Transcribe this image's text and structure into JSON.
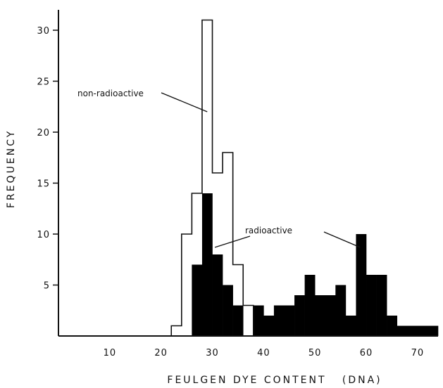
{
  "chart_data": {
    "type": "bar",
    "title": "",
    "xlabel": "FEULGEN DYE CONTENT   (DNA)",
    "ylabel": "FREQUENCY",
    "xlim": [
      0,
      74
    ],
    "ylim": [
      0,
      32
    ],
    "bin_width": 2,
    "x_ticks": [
      10,
      20,
      30,
      40,
      50,
      60,
      70
    ],
    "y_ticks": [
      5,
      10,
      15,
      20,
      25,
      30
    ],
    "grid": false,
    "legend": "none",
    "series": [
      {
        "name": "non-radioactive",
        "style": "outline",
        "bins_start": [
          22,
          24,
          26,
          28,
          30,
          32,
          34,
          36
        ],
        "values": [
          1,
          10,
          14,
          31,
          16,
          18,
          7,
          3
        ]
      },
      {
        "name": "radioactive",
        "style": "filled",
        "bins_start": [
          26,
          28,
          30,
          32,
          34,
          38,
          40,
          42,
          44,
          46,
          48,
          50,
          52,
          54,
          56,
          58,
          60,
          62,
          64,
          66,
          68,
          70,
          72
        ],
        "values": [
          7,
          14,
          8,
          5,
          3,
          3,
          2,
          3,
          3,
          4,
          6,
          4,
          4,
          5,
          2,
          10,
          6,
          6,
          2,
          1,
          1,
          1,
          1
        ]
      }
    ],
    "annotations": [
      {
        "text": "non-radioactive"
      },
      {
        "text": "radioactive"
      }
    ]
  }
}
